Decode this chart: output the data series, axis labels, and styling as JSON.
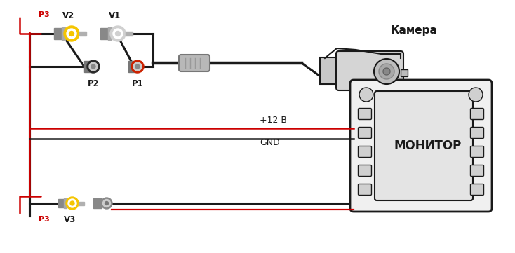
{
  "bg_color": "#ffffff",
  "line_color": "#1a1a1a",
  "red_color": "#cc0000",
  "yellow_color": "#f5c500",
  "gray_color": "#999999",
  "black_connector_color": "#222222",
  "red_connector_color": "#cc2200",
  "label_p3_top": "P3",
  "label_p3_bot": "P3",
  "label_v1": "V1",
  "label_v2": "V2",
  "label_p1": "P1",
  "label_p2": "P2",
  "label_v3": "V3",
  "label_camera": "Камера",
  "label_monitor": "МОНИТОР",
  "label_12v": "+12 В",
  "label_gnd": "GND",
  "figsize": [
    7.34,
    3.61
  ],
  "dpi": 100
}
